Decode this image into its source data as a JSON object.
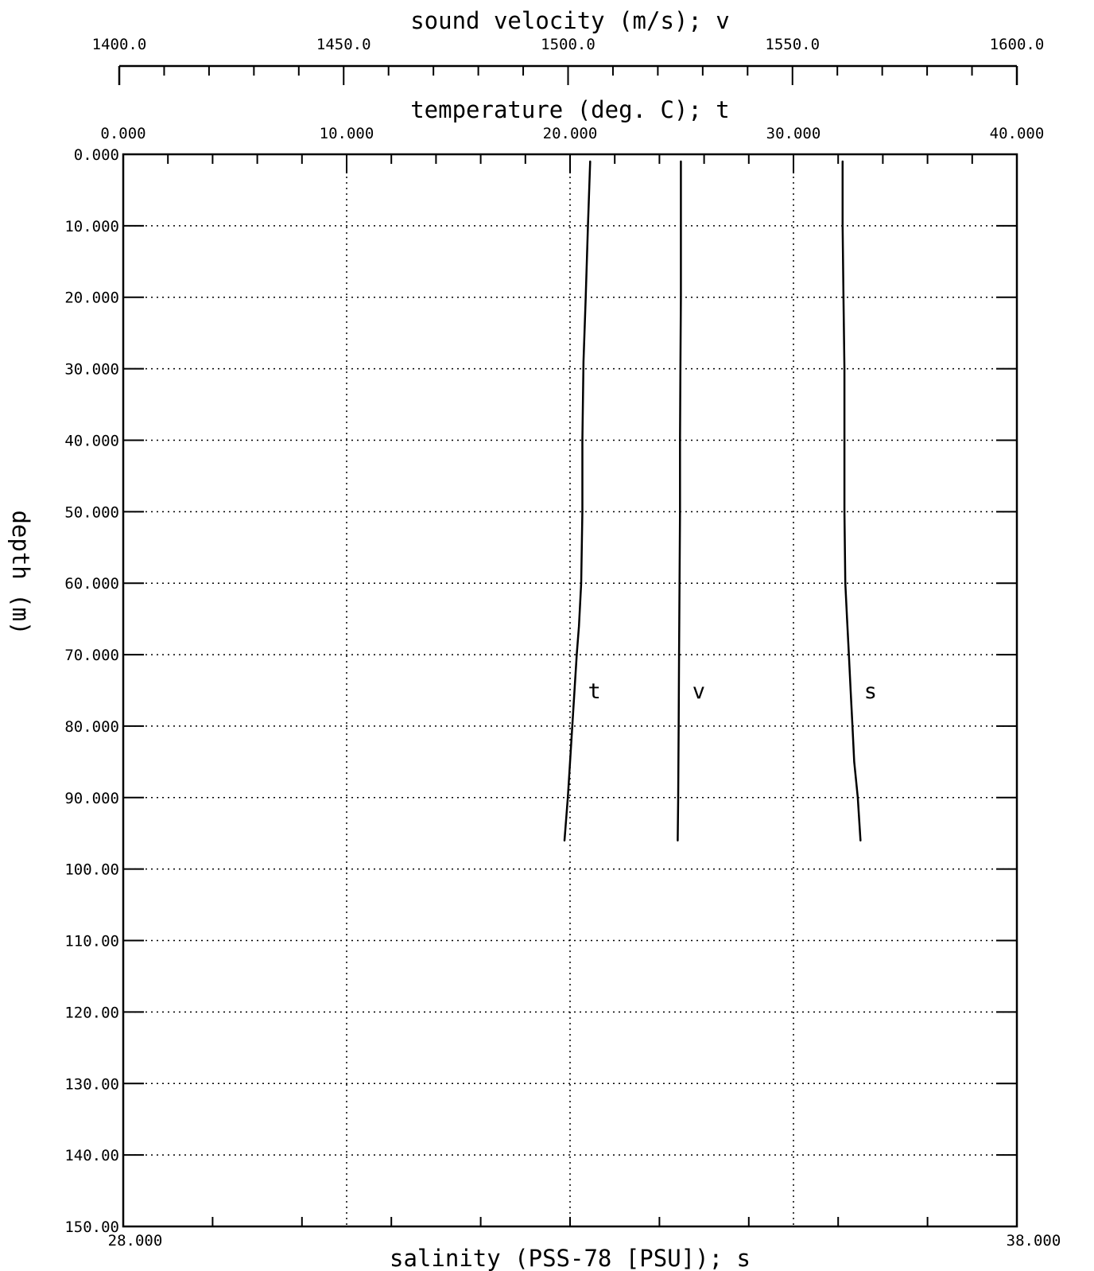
{
  "chart_data": {
    "type": "line",
    "title": "",
    "grid": true,
    "axes": {
      "velocity": {
        "label": "sound velocity (m/s); v",
        "range": [
          1400,
          1600
        ],
        "ticks": [
          "1400.0",
          "1450.0",
          "1500.0",
          "1550.0",
          "1600.0"
        ]
      },
      "temperature": {
        "label": "temperature (deg. C); t",
        "range": [
          0,
          40
        ],
        "ticks": [
          "0.000",
          "10.000",
          "20.000",
          "30.000",
          "40.000"
        ]
      },
      "salinity": {
        "label": "salinity (PSS-78 [PSU]); s",
        "range": [
          28,
          38
        ],
        "ticks": [
          "28.000",
          "38.000"
        ]
      },
      "depth": {
        "label": "depth (m)",
        "range": [
          0,
          150
        ],
        "ticks": [
          "0.000",
          "10.000",
          "20.000",
          "30.000",
          "40.000",
          "50.000",
          "60.000",
          "70.000",
          "80.000",
          "90.000",
          "100.00",
          "110.00",
          "120.00",
          "130.00",
          "140.00",
          "150.00"
        ]
      }
    },
    "series": [
      {
        "name": "t",
        "axis": "temperature",
        "depth": [
          1,
          10,
          20,
          29,
          40,
          50,
          60,
          66,
          70,
          75,
          80,
          85,
          90,
          94,
          96
        ],
        "values": [
          20.9,
          20.8,
          20.7,
          20.6,
          20.55,
          20.55,
          20.5,
          20.4,
          20.3,
          20.2,
          20.1,
          20.0,
          19.9,
          19.8,
          19.75
        ]
      },
      {
        "name": "v",
        "axis": "velocity",
        "depth": [
          1,
          10,
          20,
          30,
          40,
          50,
          60,
          70,
          80,
          90,
          96
        ],
        "values": [
          1524.8,
          1524.8,
          1524.8,
          1524.7,
          1524.6,
          1524.6,
          1524.5,
          1524.4,
          1524.3,
          1524.2,
          1524.1
        ]
      },
      {
        "name": "s",
        "axis": "salinity",
        "depth": [
          1,
          10,
          20,
          30,
          40,
          50,
          60,
          65,
          70,
          75,
          80,
          85,
          90,
          96
        ],
        "values": [
          36.05,
          36.05,
          36.06,
          36.07,
          36.07,
          36.07,
          36.08,
          36.1,
          36.12,
          36.14,
          36.16,
          36.18,
          36.22,
          36.25
        ]
      }
    ]
  }
}
